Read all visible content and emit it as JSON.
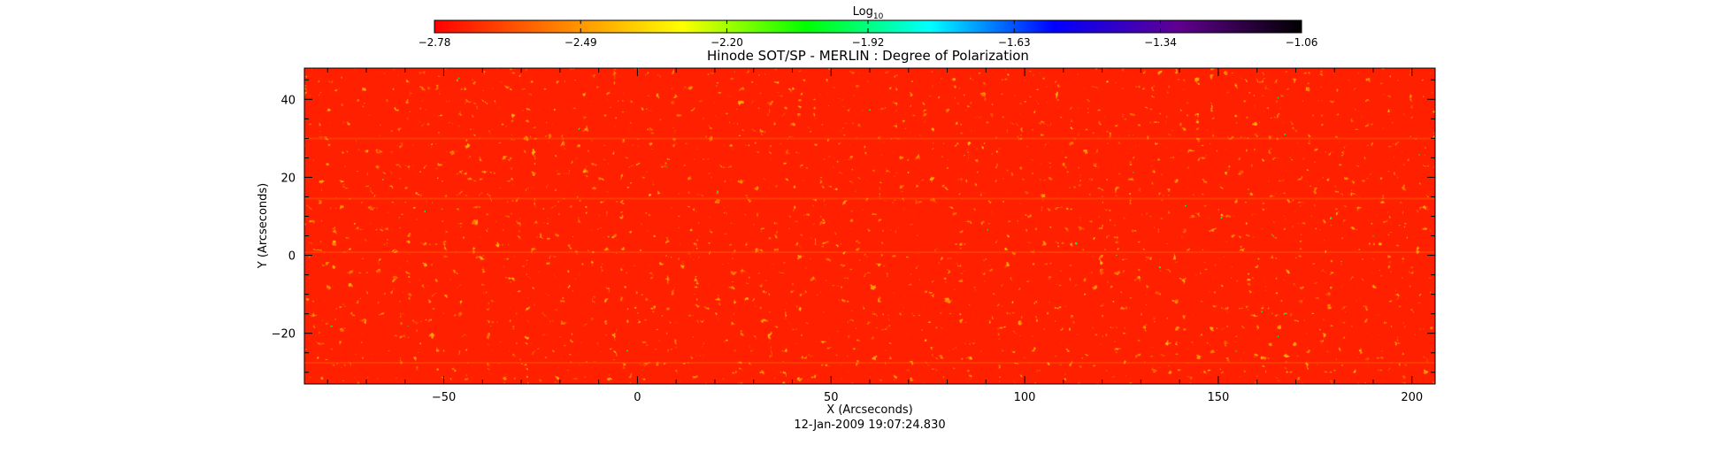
{
  "chart_data": {
    "type": "heatmap",
    "title": "Hinode SOT/SP - MERLIN : Degree of Polarization",
    "xlabel": "X (Arcseconds)",
    "ylabel": "Y (Arcseconds)",
    "timestamp": "12-Jan-2009 19:07:24.830",
    "xlim": [
      -86,
      206
    ],
    "ylim": [
      -33,
      48
    ],
    "x_ticks": [
      -50,
      0,
      50,
      100,
      150,
      200
    ],
    "x_tick_labels": [
      "−50",
      "0",
      "50",
      "100",
      "150",
      "200"
    ],
    "y_ticks": [
      -20,
      0,
      20,
      40
    ],
    "y_tick_labels": [
      "−20",
      "0",
      "20",
      "40"
    ],
    "colorbar": {
      "label_base": "Log",
      "label_subscript": "10",
      "range": [
        -2.78,
        -1.06
      ],
      "ticks": [
        -2.78,
        -2.49,
        -2.2,
        -1.92,
        -1.63,
        -1.34,
        -1.06
      ],
      "tick_labels": [
        "−2.78",
        "−2.49",
        "−2.20",
        "−1.92",
        "−1.63",
        "−1.34",
        "−1.06"
      ],
      "colors": [
        "#ff0000",
        "#ff8000",
        "#ffff00",
        "#00ff00",
        "#00ffff",
        "#0000ff",
        "#600090",
        "#000000"
      ]
    },
    "grid": false
  }
}
